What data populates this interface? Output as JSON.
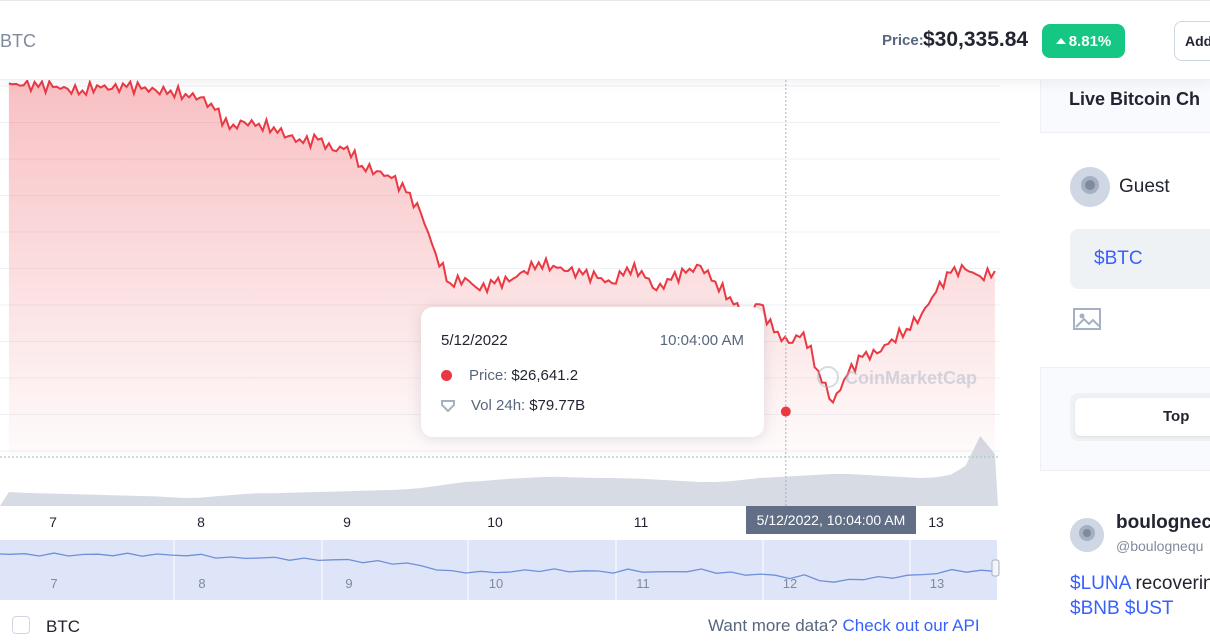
{
  "header": {
    "pair": "BTC",
    "price_caption": "Price:",
    "price_value": "$30,335.84",
    "change": "8.81%",
    "add_button": "Add"
  },
  "tooltip": {
    "date": "5/12/2022",
    "time": "10:04:00 AM",
    "price_label": "Price:",
    "price_value": "$26,641.2",
    "vol_label": "Vol 24h:",
    "vol_value": "$79.77B"
  },
  "crosshair_label": "5/12/2022, 10:04:00 AM",
  "watermark": "CoinMarketCap",
  "x_axis_ticks": [
    "7",
    "8",
    "9",
    "10",
    "11",
    "13"
  ],
  "navigator_ticks": [
    "7",
    "8",
    "9",
    "10",
    "11",
    "12",
    "13"
  ],
  "legend": {
    "series": "BTC"
  },
  "api_prompt": {
    "text": "Want more data?",
    "link": "Check out our API"
  },
  "colors": {
    "up": "#16c784",
    "down": "#ea3943",
    "link": "#3861fb"
  },
  "right_panel": {
    "title": "Live Bitcoin Ch",
    "guest": "Guest",
    "compose_text": "$BTC",
    "tab_top": "Top",
    "post": {
      "name": "boulognec",
      "handle": "@boulognequ",
      "body_word": "recoverin",
      "tags_line1": [
        "$LUNA"
      ],
      "tags_line2": [
        "$BNB",
        "$UST"
      ]
    }
  },
  "chart_data": {
    "type": "line",
    "x_unit": "day (May 2022)",
    "x": [
      6.7,
      6.8,
      6.9,
      7.0,
      7.1,
      7.2,
      7.3,
      7.4,
      7.5,
      7.6,
      7.7,
      7.8,
      7.9,
      8.0,
      8.1,
      8.2,
      8.3,
      8.4,
      8.5,
      8.6,
      8.7,
      8.8,
      8.9,
      9.0,
      9.1,
      9.2,
      9.3,
      9.4,
      9.5,
      9.6,
      9.7,
      9.8,
      9.9,
      10.0,
      10.1,
      10.2,
      10.3,
      10.4,
      10.5,
      10.6,
      10.7,
      10.8,
      10.9,
      11.0,
      11.1,
      11.2,
      11.3,
      11.4,
      11.5,
      11.6,
      11.7,
      11.8,
      11.9,
      12.0,
      12.1,
      12.2,
      12.3,
      12.4,
      12.5,
      12.6,
      12.7,
      12.8,
      12.9,
      13.0,
      13.1,
      13.2,
      13.3,
      13.4
    ],
    "series": [
      {
        "values": [
          36000,
          35950,
          35900,
          35900,
          35850,
          35800,
          35950,
          35850,
          35900,
          35850,
          35800,
          35800,
          35700,
          35600,
          35250,
          34700,
          34900,
          34850,
          34750,
          34500,
          34300,
          34400,
          34100,
          34200,
          33650,
          33500,
          33300,
          32900,
          32300,
          31150,
          30300,
          30450,
          30100,
          30300,
          30350,
          30650,
          30900,
          30800,
          30650,
          30550,
          30450,
          30300,
          30750,
          30650,
          30100,
          30400,
          30600,
          30800,
          30350,
          29900,
          29400,
          29700,
          28900,
          28600,
          28900,
          27800,
          26900,
          27700,
          28200,
          28300,
          28700,
          29000,
          29400,
          30050,
          30600,
          30700,
          30500,
          30650
        ]
      }
    ],
    "volume": [
      0.35,
      0.33,
      0.32,
      0.31,
      0.3,
      0.29,
      0.28,
      0.27,
      0.26,
      0.25,
      0.24,
      0.22,
      0.2,
      0.21,
      0.24,
      0.27,
      0.3,
      0.32,
      0.32,
      0.33,
      0.34,
      0.35,
      0.36,
      0.37,
      0.38,
      0.39,
      0.4,
      0.42,
      0.45,
      0.5,
      0.55,
      0.6,
      0.62,
      0.65,
      0.68,
      0.7,
      0.72,
      0.73,
      0.72,
      0.71,
      0.7,
      0.7,
      0.69,
      0.68,
      0.66,
      0.64,
      0.62,
      0.6,
      0.6,
      0.62,
      0.66,
      0.7,
      0.72,
      0.74,
      0.76,
      0.78,
      0.8,
      0.8,
      0.78,
      0.76,
      0.74,
      0.72,
      0.7,
      0.72,
      0.78,
      1.0,
      1.5,
      1.2
    ],
    "highlight": {
      "x": 12.0,
      "y": 26641.2
    }
  }
}
